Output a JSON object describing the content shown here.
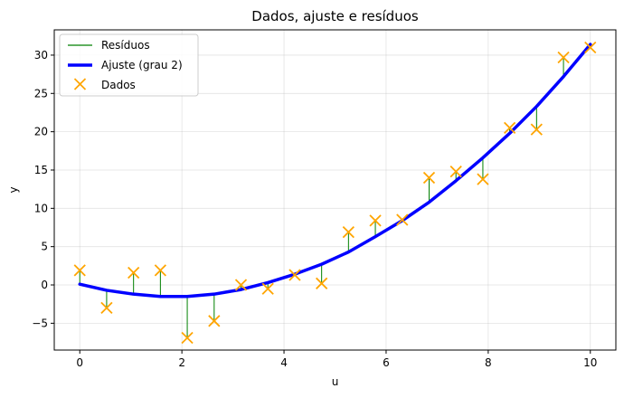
{
  "chart_data": {
    "type": "scatter",
    "title": "Dados, ajuste e resíduos",
    "xlabel": "u",
    "ylabel": "y",
    "xlim": [
      -0.5,
      10.5
    ],
    "ylim": [
      -8.5,
      33.3
    ],
    "xticks": [
      0,
      2,
      4,
      6,
      8,
      10
    ],
    "yticks": [
      -5,
      0,
      5,
      10,
      15,
      20,
      25,
      30
    ],
    "xtick_labels": [
      "0",
      "2",
      "4",
      "6",
      "8",
      "10"
    ],
    "ytick_labels": [
      "−5",
      "0",
      "5",
      "10",
      "15",
      "20",
      "25",
      "30"
    ],
    "grid": true,
    "legend_position": "upper-left",
    "series": [
      {
        "name": "Resíduos",
        "kind": "residual-lines",
        "color": "#008000"
      },
      {
        "name": "Ajuste (grau 2)",
        "kind": "line",
        "color": "#0000ff",
        "x": [
          0,
          0.526,
          1.053,
          1.579,
          2.105,
          2.632,
          3.158,
          3.684,
          4.211,
          4.737,
          5.263,
          5.789,
          6.316,
          6.842,
          7.368,
          7.895,
          8.421,
          8.947,
          9.474,
          10
        ],
        "y": [
          0.1,
          -0.7,
          -1.2,
          -1.5,
          -1.5,
          -1.2,
          -0.6,
          0.3,
          1.4,
          2.7,
          4.3,
          6.3,
          8.4,
          10.8,
          13.6,
          16.6,
          19.8,
          23.3,
          27.2,
          31.4
        ]
      },
      {
        "name": "Dados",
        "kind": "scatter",
        "marker": "x",
        "color": "#ffa500",
        "x": [
          0,
          0.526,
          1.053,
          1.579,
          2.105,
          2.632,
          3.158,
          3.684,
          4.211,
          4.737,
          5.263,
          5.789,
          6.316,
          6.842,
          7.368,
          7.895,
          8.421,
          8.947,
          9.474,
          10
        ],
        "y": [
          1.9,
          -3.0,
          1.6,
          1.9,
          -6.9,
          -4.7,
          0.0,
          -0.5,
          1.3,
          0.2,
          6.9,
          8.4,
          8.5,
          14.0,
          14.8,
          13.8,
          20.5,
          20.3,
          29.7,
          31.0
        ]
      }
    ]
  }
}
